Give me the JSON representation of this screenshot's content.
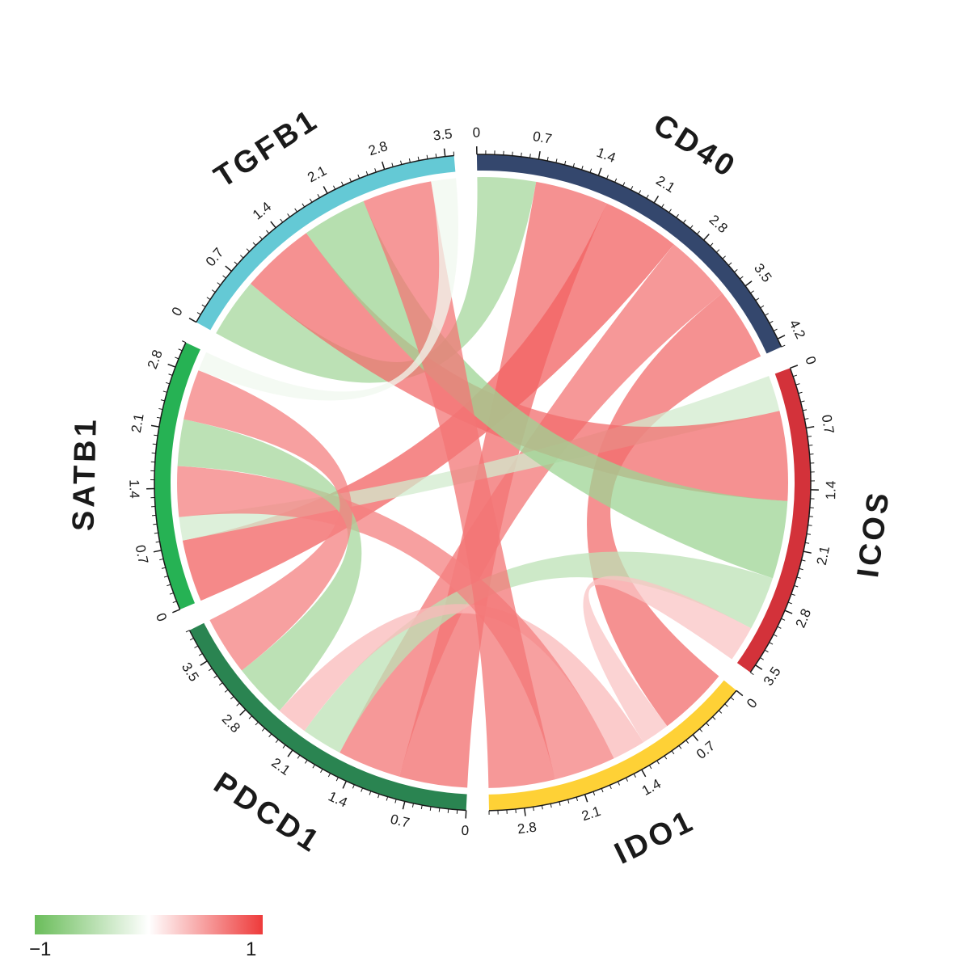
{
  "chart_data": {
    "type": "chord",
    "sectors": [
      {
        "name": "CD40",
        "color": "#34476d",
        "max": 4.3,
        "ticks": [
          "0",
          "0.7",
          "1.4",
          "2.1",
          "2.8",
          "3.5",
          "4.2"
        ]
      },
      {
        "name": "ICOS",
        "color": "#d3323a",
        "max": 3.6,
        "ticks": [
          "0",
          "0.7",
          "1.4",
          "2.1",
          "2.8",
          "3.5"
        ]
      },
      {
        "name": "IDO1",
        "color": "#fed136",
        "max": 3.2,
        "ticks": [
          "0",
          "0.7",
          "1.4",
          "2.1",
          "2.8"
        ]
      },
      {
        "name": "PDCD1",
        "color": "#2a8451",
        "max": 3.9,
        "ticks": [
          "0",
          "0.7",
          "1.4",
          "2.1",
          "2.8",
          "3.5"
        ]
      },
      {
        "name": "SATB1",
        "color": "#26b254",
        "max": 3.1,
        "ticks": [
          "0",
          "0.7",
          "1.4",
          "2.1",
          "2.8"
        ]
      },
      {
        "name": "TGFB1",
        "color": "#64c9d5",
        "max": 3.6,
        "ticks": [
          "0",
          "0.7",
          "1.4",
          "2.1",
          "2.8",
          "3.5"
        ]
      }
    ],
    "links": [
      {
        "from": "CD40",
        "to": "TGFB1",
        "value": -0.6
      },
      {
        "from": "CD40",
        "to": "PDCD1",
        "value": 0.75
      },
      {
        "from": "CD40",
        "to": "SATB1",
        "value": 0.8
      },
      {
        "from": "CD40",
        "to": "PDCD1",
        "value": 0.7
      },
      {
        "from": "CD40",
        "to": "IDO1",
        "value": 0.75
      },
      {
        "from": "ICOS",
        "to": "SATB1",
        "value": -0.3
      },
      {
        "from": "ICOS",
        "to": "TGFB1",
        "value": 0.75
      },
      {
        "from": "ICOS",
        "to": "TGFB1",
        "value": -0.65
      },
      {
        "from": "ICOS",
        "to": "PDCD1",
        "value": -0.45
      },
      {
        "from": "ICOS",
        "to": "IDO1",
        "value": 0.3
      },
      {
        "from": "IDO1",
        "to": "PDCD1",
        "value": 0.35
      },
      {
        "from": "IDO1",
        "to": "SATB1",
        "value": 0.65
      },
      {
        "from": "IDO1",
        "to": "TGFB1",
        "value": 0.7
      },
      {
        "from": "PDCD1",
        "to": "SATB1",
        "value": -0.6
      },
      {
        "from": "PDCD1",
        "to": "SATB1",
        "value": 0.65
      },
      {
        "from": "SATB1",
        "to": "TGFB1",
        "value": -0.1
      }
    ],
    "legend": {
      "min_label": "−1",
      "max_label": "1",
      "colors": [
        "#6abd5a",
        "#ffffff",
        "#ee3b3b"
      ]
    }
  }
}
